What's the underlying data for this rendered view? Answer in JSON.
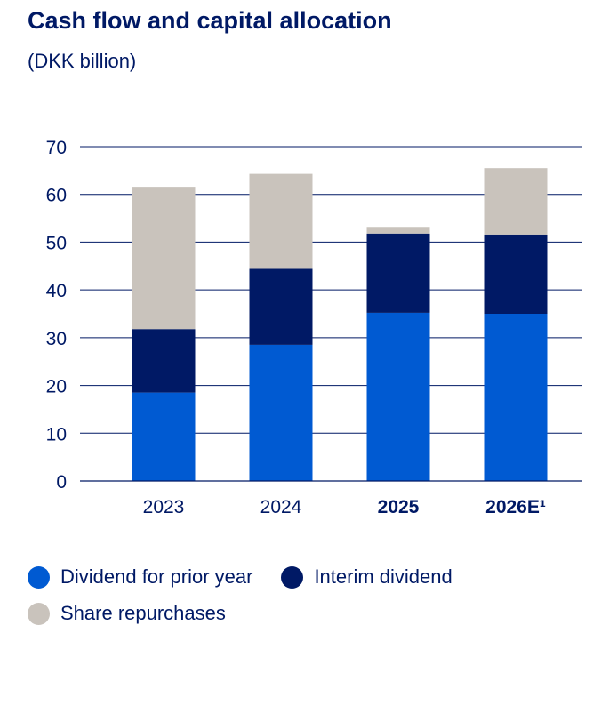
{
  "title": "Cash flow and capital allocation",
  "subtitle": "(DKK billion)",
  "colors": {
    "dividend_prior_year": "#005AD2",
    "interim_dividend": "#001965",
    "share_repurchases": "#C9C3BC",
    "text": "#001965",
    "grid": "#001965"
  },
  "chart_data": {
    "type": "bar",
    "stacked": true,
    "categories": [
      "2023",
      "2024",
      "2025",
      "2026E¹"
    ],
    "categories_bold": [
      false,
      false,
      true,
      true
    ],
    "series": [
      {
        "name": "Dividend for prior year",
        "values": [
          18.5,
          28.5,
          35.2,
          35.0
        ]
      },
      {
        "name": "Interim dividend",
        "values": [
          13.3,
          15.9,
          16.6,
          16.6
        ]
      },
      {
        "name": "Share repurchases",
        "values": [
          29.8,
          19.9,
          1.4,
          13.9
        ]
      }
    ],
    "ylim": [
      0,
      70
    ],
    "yticks": [
      "0",
      "10",
      "20",
      "30",
      "40",
      "50",
      "60",
      "70"
    ],
    "grid": true,
    "legend_position": "bottom-left"
  }
}
